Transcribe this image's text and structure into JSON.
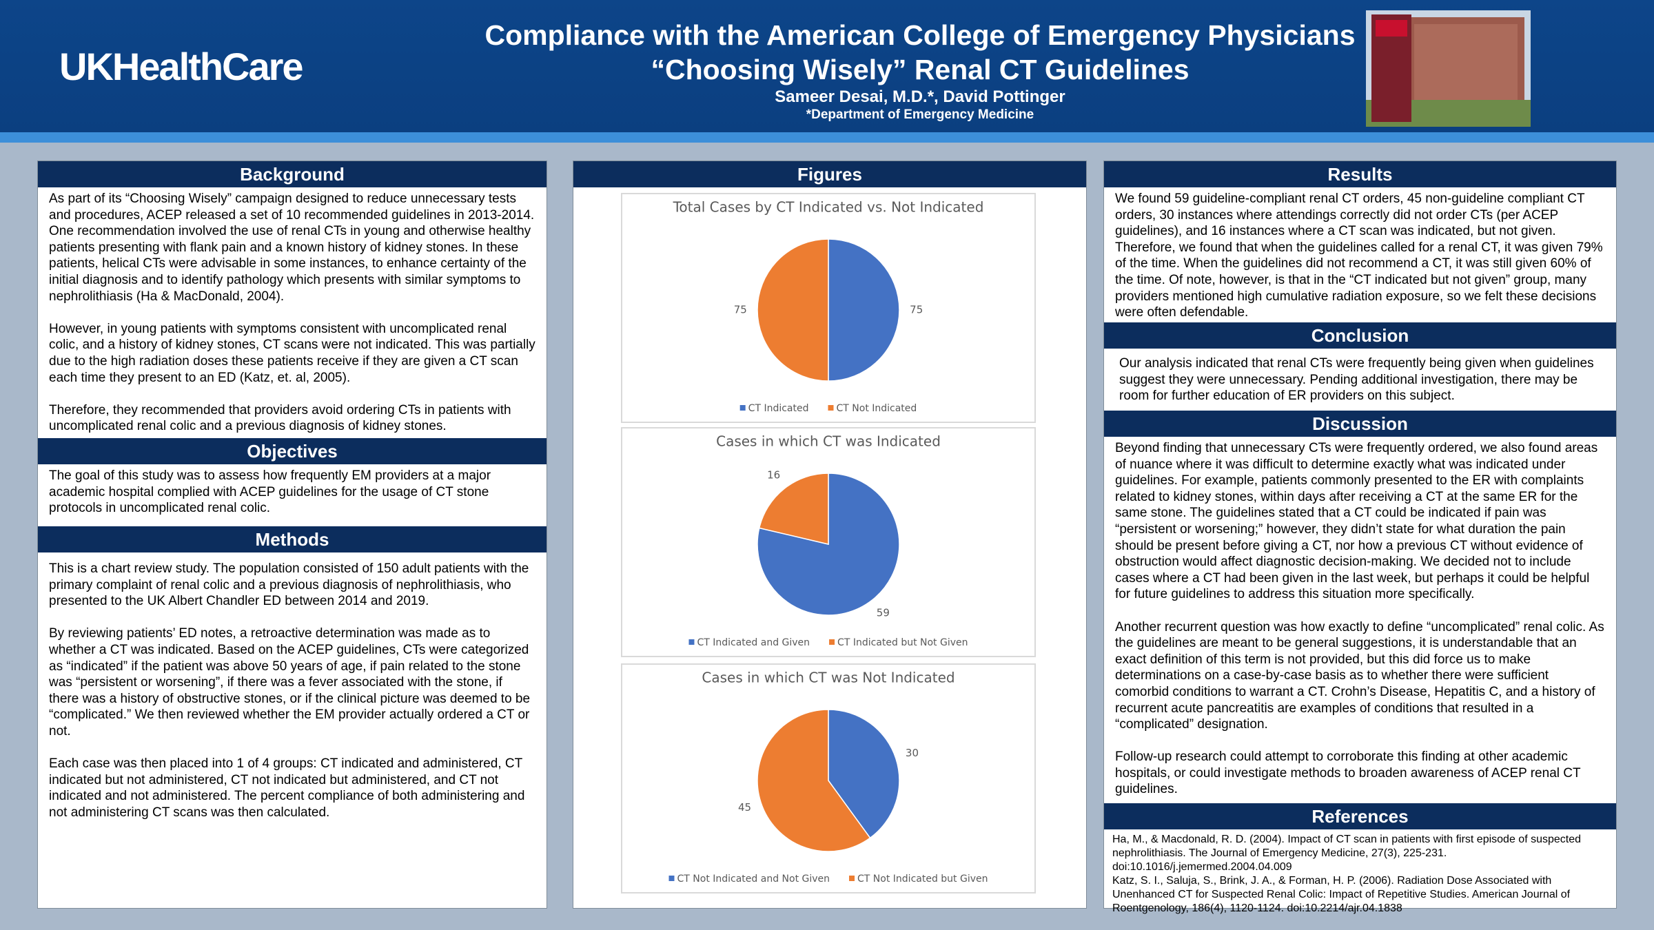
{
  "header": {
    "logo": "UKHealthCare",
    "title_lines": [
      "Compliance with the American College of Emergency Physicians",
      "“Choosing Wisely” Renal CT Guidelines"
    ],
    "authors": "Sameer Desai, M.D.*, David Pottinger",
    "affiliation": "*Department of Emergency Medicine"
  },
  "background": {
    "heading": "Background",
    "paragraphs": [
      "As part of its “Choosing Wisely” campaign designed to reduce unnecessary tests and procedures, ACEP released a set of 10 recommended guidelines in 2013-2014. One recommendation involved the use of renal CTs in young and otherwise healthy patients presenting with flank pain and a known history of kidney stones. In these patients, helical CTs were advisable in some instances, to enhance certainty of the initial diagnosis and to identify pathology which presents with similar symptoms to nephrolithiasis (Ha & MacDonald, 2004).",
      "However, in young patients with symptoms consistent with uncomplicated renal colic, and a history of kidney stones, CT scans were not indicated. This was partially due to the high radiation doses these patients receive if they are given a CT scan each time they present to an ED (Katz, et. al, 2005).",
      "Therefore, they recommended that providers avoid ordering CTs in patients with uncomplicated renal colic and a previous diagnosis of kidney stones."
    ]
  },
  "objectives": {
    "heading": "Objectives",
    "paragraphs": [
      "The goal of this study was to assess how frequently EM providers at a major academic hospital complied with ACEP guidelines for the usage of CT stone protocols in uncomplicated renal colic."
    ]
  },
  "methods": {
    "heading": "Methods",
    "paragraphs": [
      "This is a chart review study. The population consisted of 150 adult patients with the primary complaint of renal colic and a previous diagnosis of nephrolithiasis, who presented to the UK Albert Chandler ED between 2014 and 2019.",
      "By reviewing patients’ ED notes, a retroactive determination was made as to whether a CT was indicated. Based on the ACEP guidelines, CTs were categorized as “indicated” if the patient was above 50 years of age, if pain related to the stone was “persistent or worsening”, if there was a fever associated with the stone, if there was a history of obstructive stones, or if the clinical picture was deemed to be “complicated.”  We then reviewed whether the EM provider actually ordered a CT or not.",
      "Each case was then placed into 1 of 4 groups: CT indicated and administered, CT indicated but not administered, CT not indicated but administered, and CT not indicated and not administered. The percent compliance of both administering and not administering CT scans was then calculated."
    ]
  },
  "figures": {
    "heading": "Figures",
    "charts": [
      {
        "type": "pie",
        "title": "Total Cases by CT Indicated vs. Not Indicated",
        "categories": [
          "CT Indicated",
          "CT Not Indicated"
        ],
        "values": [
          75,
          75
        ],
        "colors": [
          "#4472c4",
          "#ed7d31"
        ]
      },
      {
        "type": "pie",
        "title": "Cases in which CT was Indicated",
        "categories": [
          "CT Indicated and Given",
          "CT Indicated but Not Given"
        ],
        "values": [
          59,
          16
        ],
        "colors": [
          "#4472c4",
          "#ed7d31"
        ]
      },
      {
        "type": "pie",
        "title": "Cases in which CT was Not Indicated",
        "categories": [
          "CT Not Indicated and Not Given",
          "CT Not Indicated but Given"
        ],
        "values": [
          30,
          45
        ],
        "colors": [
          "#4472c4",
          "#ed7d31"
        ]
      }
    ]
  },
  "results": {
    "heading": "Results",
    "paragraphs": [
      "We found 59 guideline-compliant renal CT orders, 45 non-guideline compliant CT orders, 30 instances where attendings correctly did not order CTs (per ACEP guidelines), and 16 instances where a CT scan was indicated, but not given. Therefore, we found that when the guidelines called for a renal CT, it was given 79% of the time. When the guidelines did not recommend a CT, it was still given 60% of the time. Of note, however, is that in the “CT indicated but not given” group, many providers mentioned high cumulative radiation exposure, so we felt these decisions were often defendable."
    ]
  },
  "conclusion": {
    "heading": "Conclusion",
    "paragraphs": [
      "Our analysis indicated that renal CTs were frequently being given when guidelines suggest they were unnecessary. Pending additional investigation, there may be room for further education of ER providers on this subject."
    ]
  },
  "discussion": {
    "heading": "Discussion",
    "paragraphs": [
      "Beyond finding that unnecessary CTs were frequently ordered, we also found areas of nuance where it was difficult to determine exactly what was indicated under guidelines. For example, patients commonly presented to the ER with complaints related to kidney stones, within days after receiving a CT at the same ER for the same stone. The guidelines stated that a CT could be indicated if pain was “persistent or worsening;” however, they didn’t state for what duration the pain should be present before giving a CT, nor how a previous CT without evidence of obstruction would affect diagnostic decision-making. We decided not to include cases where a CT had been given in the last week, but perhaps it could be helpful for future guidelines to address this situation more specifically.",
      "Another recurrent question was how exactly to define “uncomplicated” renal colic. As the guidelines are meant to be general suggestions, it is understandable that an exact definition of this term is not provided, but this did force us to make determinations on a case-by-case basis as to whether there were sufficient comorbid conditions to warrant a CT. Crohn’s Disease, Hepatitis C, and a history of recurrent acute pancreatitis are examples of conditions that resulted in a “complicated” designation.",
      "Follow-up research could attempt to corroborate this finding at other academic hospitals, or could investigate methods to broaden awareness of ACEP renal CT guidelines."
    ]
  },
  "references": {
    "heading": "References",
    "paragraphs": [
      "Ha, M., & Macdonald, R. D. (2004). Impact of CT scan in patients with first episode of suspected nephrolithiasis. The Journal of Emergency Medicine, 27(3), 225-231. doi:10.1016/j.jemermed.2004.04.009",
      "Katz, S. I., Saluja, S., Brink, J. A., & Forman, H. P. (2006). Radiation Dose Associated with Unenhanced CT for Suspected Renal Colic: Impact of Repetitive Studies. American Journal of Roentgenology, 186(4), 1120-1124. doi:10.2214/ajr.04.1838"
    ]
  }
}
